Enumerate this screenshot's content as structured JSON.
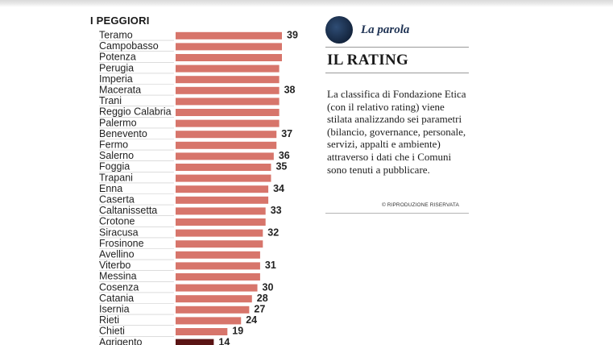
{
  "chart_data": {
    "type": "bar",
    "orientation": "horizontal",
    "title": "I PEGGIORI",
    "categories": [
      "Teramo",
      "Campobasso",
      "Potenza",
      "Perugia",
      "Imperia",
      "Macerata",
      "Trani",
      "Reggio Calabria",
      "Palermo",
      "Benevento",
      "Fermo",
      "Salerno",
      "Foggia",
      "Trapani",
      "Enna",
      "Caserta",
      "Caltanissetta",
      "Crotone",
      "Siracusa",
      "Frosinone",
      "Avellino",
      "Viterbo",
      "Messina",
      "Cosenza",
      "Catania",
      "Isernia",
      "Rieti",
      "Chieti",
      "Agrigento"
    ],
    "values": [
      39,
      39,
      39,
      38,
      38,
      38,
      38,
      38,
      38,
      37,
      37,
      36,
      35,
      35,
      34,
      34,
      33,
      33,
      32,
      32,
      31,
      31,
      31,
      30,
      28,
      27,
      24,
      19,
      14
    ],
    "value_labels": [
      "39",
      "",
      "",
      "",
      "",
      "38",
      "",
      "",
      "",
      "37",
      "",
      "36",
      "35",
      "",
      "34",
      "",
      "33",
      "",
      "32",
      "",
      "",
      "31",
      "",
      "30",
      "28",
      "27",
      "24",
      "19",
      "14"
    ],
    "xlim": [
      0,
      39
    ],
    "bar_color": "#d7756b",
    "highlight_color": "#5a1414"
  },
  "sidebar": {
    "kicker": "La parola",
    "headline": "IL RATING",
    "body": "La classifica di Fondazione Etica (con il relativo rating) viene stilata analizzando sei parametri (bilancio, governance, personale, servizi, appalti e ambiente) attraverso i dati che i Comuni sono tenuti a pubblicare.",
    "copyright": "© RIPRODUZIONE RISERVATA",
    "kicker_color": "#1f3354"
  }
}
